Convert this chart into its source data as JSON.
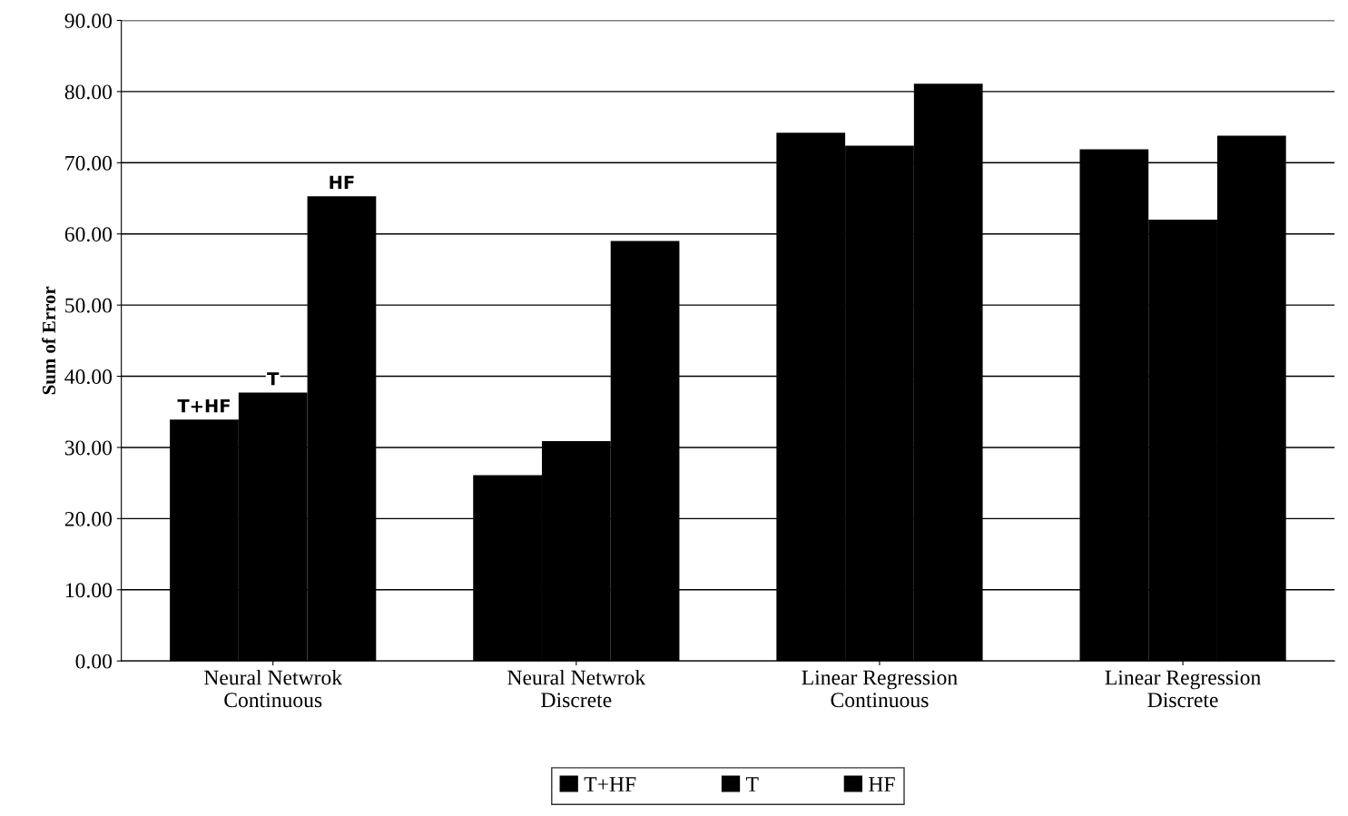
{
  "chart_data": {
    "type": "bar",
    "ylabel": "Sum of Error",
    "categories": [
      "Neural Netwrok\nContinuous",
      "Neural Netwrok\nDiscrete",
      "Linear Regression\nContinuous",
      "Linear Regression\nDiscrete"
    ],
    "series": [
      {
        "name": "T+HF",
        "color": "#000000",
        "values": [
          33.9,
          26.1,
          74.2,
          71.9
        ]
      },
      {
        "name": "T",
        "color": "#000000",
        "values": [
          37.7,
          30.9,
          72.4,
          62.0
        ]
      },
      {
        "name": "HF",
        "color": "#000000",
        "values": [
          65.3,
          59.0,
          81.1,
          73.8
        ]
      }
    ],
    "annotations": [
      "T+HF",
      "T",
      "HF"
    ],
    "ylim": [
      0,
      90
    ],
    "yticks": [
      {
        "value": 0,
        "label": "0.00"
      },
      {
        "value": 10,
        "label": "10.00"
      },
      {
        "value": 20,
        "label": "20.00"
      },
      {
        "value": 30,
        "label": "30.00"
      },
      {
        "value": 40,
        "label": "40.00"
      },
      {
        "value": 50,
        "label": "50.00"
      },
      {
        "value": 60,
        "label": "60.00"
      },
      {
        "value": 70,
        "label": "70.00"
      },
      {
        "value": 80,
        "label": "80.00"
      },
      {
        "value": 90,
        "label": "90.00"
      }
    ],
    "grid": "y",
    "legend": "bottom"
  }
}
